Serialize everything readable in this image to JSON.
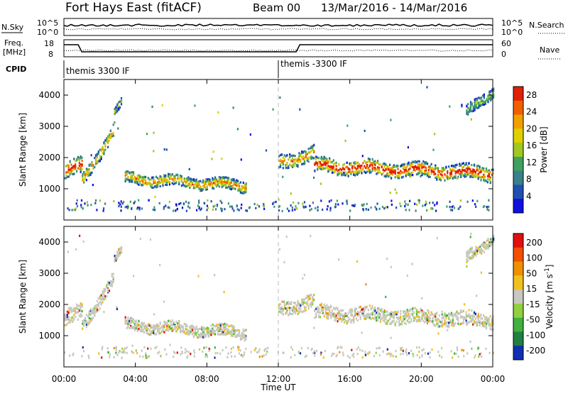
{
  "header": {
    "title": "Fort Hays East (fitACF)",
    "beam": "Beam 00",
    "date_range": "13/Mar/2016 - 14/Mar/2016"
  },
  "top_panels": {
    "nsky_label": "N.Sky",
    "nsky_ticks": [
      "10^5",
      "10^0"
    ],
    "nsearch_label": "N.Search",
    "nsearch_ticks": [
      "10^5",
      "10^0"
    ],
    "freq_label": "Freq.",
    "freq_unit": "[MHz]",
    "freq_ticks": [
      "18",
      "8"
    ],
    "nave_label": "Nave",
    "nave_ticks": [
      "60",
      "0"
    ],
    "cpid_label": "CPID",
    "cpid_segments": [
      {
        "label": "themis 3300 IF",
        "start_hour": 0
      },
      {
        "label": "themis -3300 IF",
        "start_hour": 12
      }
    ]
  },
  "time_axis": {
    "label": "Time UT",
    "ticks": [
      "00:00",
      "04:00",
      "08:00",
      "12:00",
      "16:00",
      "20:00",
      "00:00"
    ]
  },
  "chart_data": [
    {
      "type": "heatmap",
      "name": "power-panel",
      "ylabel": "Slant Range [km]",
      "yticks": [
        "1000",
        "2000",
        "3000",
        "4000"
      ],
      "ylim": [
        0,
        4500
      ],
      "xlim_hours": [
        0,
        24
      ],
      "colorbar_label": "Power [dB]",
      "colorbar_ticks": [
        "4",
        "8",
        "12",
        "16",
        "20",
        "24",
        "28"
      ],
      "colorbar_range": [
        0,
        30
      ],
      "colors": [
        "#1010e0",
        "#2050b0",
        "#3a7f8c",
        "#40a060",
        "#a0c820",
        "#e0d000",
        "#f0a000",
        "#f06000",
        "#e02000"
      ]
    },
    {
      "type": "heatmap",
      "name": "velocity-panel",
      "ylabel": "Slant Range [km]",
      "yticks": [
        "1000",
        "2000",
        "3000",
        "4000"
      ],
      "ylim": [
        0,
        4500
      ],
      "xlim_hours": [
        0,
        24
      ],
      "colorbar_label": "Velocity [m s^-1]",
      "colorbar_ticks": [
        "200",
        "100",
        "50",
        "15",
        "-15",
        "-50",
        "-100",
        "-200"
      ],
      "colorbar_range": [
        -250,
        250
      ],
      "colors": [
        "#1030b0",
        "#208040",
        "#40b040",
        "#90d040",
        "#c8c8c0",
        "#f0c020",
        "#f09000",
        "#f05000",
        "#e01010"
      ]
    }
  ]
}
